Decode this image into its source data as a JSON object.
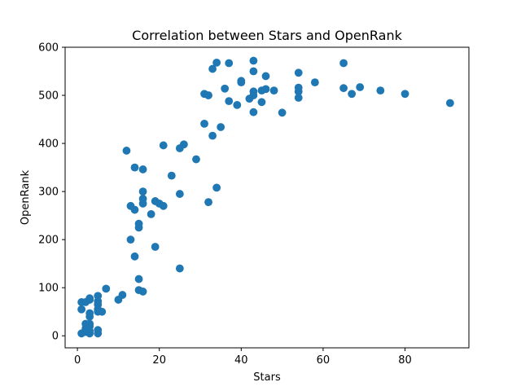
{
  "chart_data": {
    "type": "scatter",
    "title": "Correlation between Stars and OpenRank",
    "xlabel": "Stars",
    "ylabel": "OpenRank",
    "xlim": [
      -3,
      95.6
    ],
    "ylim": [
      -25,
      600
    ],
    "xticks": [
      0,
      20,
      40,
      60,
      80
    ],
    "yticks": [
      0,
      100,
      200,
      300,
      400,
      500,
      600
    ],
    "grid": false,
    "legend": "none",
    "color": "#1f77b4",
    "points": [
      {
        "x": 1,
        "y": 5
      },
      {
        "x": 1,
        "y": 55
      },
      {
        "x": 1,
        "y": 70
      },
      {
        "x": 2,
        "y": 10
      },
      {
        "x": 2,
        "y": 8
      },
      {
        "x": 2,
        "y": 70
      },
      {
        "x": 2,
        "y": 15
      },
      {
        "x": 2,
        "y": 25
      },
      {
        "x": 3,
        "y": 5
      },
      {
        "x": 3,
        "y": 20
      },
      {
        "x": 3,
        "y": 25
      },
      {
        "x": 3,
        "y": 40
      },
      {
        "x": 3,
        "y": 47
      },
      {
        "x": 3,
        "y": 75
      },
      {
        "x": 3,
        "y": 78
      },
      {
        "x": 3,
        "y": 10
      },
      {
        "x": 5,
        "y": 5
      },
      {
        "x": 5,
        "y": 12
      },
      {
        "x": 5,
        "y": 50
      },
      {
        "x": 5,
        "y": 55
      },
      {
        "x": 5,
        "y": 65
      },
      {
        "x": 5,
        "y": 72
      },
      {
        "x": 5,
        "y": 83
      },
      {
        "x": 6,
        "y": 50
      },
      {
        "x": 7,
        "y": 98
      },
      {
        "x": 10,
        "y": 75
      },
      {
        "x": 11,
        "y": 85
      },
      {
        "x": 12,
        "y": 385
      },
      {
        "x": 13,
        "y": 200
      },
      {
        "x": 13,
        "y": 270
      },
      {
        "x": 14,
        "y": 165
      },
      {
        "x": 14,
        "y": 262
      },
      {
        "x": 14,
        "y": 350
      },
      {
        "x": 15,
        "y": 95
      },
      {
        "x": 15,
        "y": 118
      },
      {
        "x": 15,
        "y": 225
      },
      {
        "x": 15,
        "y": 233
      },
      {
        "x": 16,
        "y": 92
      },
      {
        "x": 16,
        "y": 275
      },
      {
        "x": 16,
        "y": 285
      },
      {
        "x": 16,
        "y": 300
      },
      {
        "x": 16,
        "y": 346
      },
      {
        "x": 18,
        "y": 253
      },
      {
        "x": 19,
        "y": 185
      },
      {
        "x": 19,
        "y": 280
      },
      {
        "x": 20,
        "y": 275
      },
      {
        "x": 21,
        "y": 270
      },
      {
        "x": 21,
        "y": 396
      },
      {
        "x": 23,
        "y": 333
      },
      {
        "x": 25,
        "y": 140
      },
      {
        "x": 25,
        "y": 295
      },
      {
        "x": 25,
        "y": 390
      },
      {
        "x": 26,
        "y": 398
      },
      {
        "x": 29,
        "y": 367
      },
      {
        "x": 31,
        "y": 441
      },
      {
        "x": 31,
        "y": 503
      },
      {
        "x": 32,
        "y": 278
      },
      {
        "x": 32,
        "y": 500
      },
      {
        "x": 33,
        "y": 416
      },
      {
        "x": 33,
        "y": 555
      },
      {
        "x": 34,
        "y": 308
      },
      {
        "x": 34,
        "y": 568
      },
      {
        "x": 35,
        "y": 434
      },
      {
        "x": 36,
        "y": 514
      },
      {
        "x": 37,
        "y": 488
      },
      {
        "x": 37,
        "y": 567
      },
      {
        "x": 39,
        "y": 480
      },
      {
        "x": 40,
        "y": 527
      },
      {
        "x": 40,
        "y": 530
      },
      {
        "x": 42,
        "y": 493
      },
      {
        "x": 43,
        "y": 465
      },
      {
        "x": 43,
        "y": 500
      },
      {
        "x": 43,
        "y": 508
      },
      {
        "x": 43,
        "y": 550
      },
      {
        "x": 43,
        "y": 572
      },
      {
        "x": 45,
        "y": 486
      },
      {
        "x": 45,
        "y": 510
      },
      {
        "x": 46,
        "y": 540
      },
      {
        "x": 46,
        "y": 513
      },
      {
        "x": 48,
        "y": 510
      },
      {
        "x": 50,
        "y": 464
      },
      {
        "x": 54,
        "y": 495
      },
      {
        "x": 54,
        "y": 508
      },
      {
        "x": 54,
        "y": 516
      },
      {
        "x": 54,
        "y": 547
      },
      {
        "x": 58,
        "y": 527
      },
      {
        "x": 65,
        "y": 515
      },
      {
        "x": 65,
        "y": 567
      },
      {
        "x": 67,
        "y": 503
      },
      {
        "x": 69,
        "y": 517
      },
      {
        "x": 74,
        "y": 510
      },
      {
        "x": 80,
        "y": 503
      },
      {
        "x": 91,
        "y": 484
      }
    ]
  }
}
